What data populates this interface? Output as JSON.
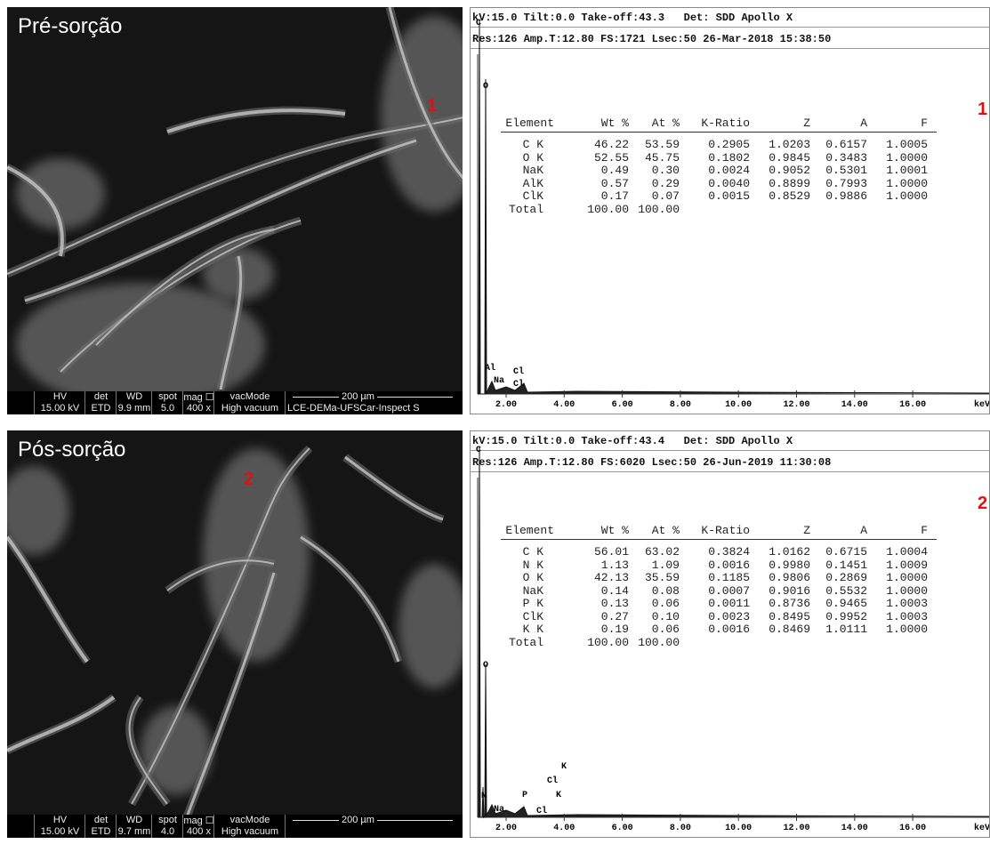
{
  "panels": [
    {
      "sem": {
        "label": "Pré-sorção",
        "marker": "1",
        "info": {
          "headers": [
            "HV",
            "det",
            "WD",
            "spot",
            "mag ☐",
            "vacMode"
          ],
          "values": [
            "15.00 kV",
            "ETD",
            "9.9 mm",
            "5.0",
            "400 x",
            "High vacuum"
          ],
          "scale": "200 µm",
          "credit": "LCE-DEMa-UFSCar-Inspect S"
        }
      },
      "eds": {
        "header": [
          "kV:15.0 Tilt:0.0 Take-off:43.3   Det: SDD Apollo X",
          "Res:126 Amp.T:12.80 FS:1721 Lsec:50 26-Mar-2018 15:38:50"
        ],
        "marker": "1",
        "table": {
          "columns": [
            "Element",
            "Wt %",
            "At %",
            "K-Ratio",
            "Z",
            "A",
            "F"
          ],
          "rows": [
            [
              "C K",
              "46.22",
              "53.59",
              "0.2905",
              "1.0203",
              "0.6157",
              "1.0005"
            ],
            [
              "O K",
              "52.55",
              "45.75",
              "0.1802",
              "0.9845",
              "0.3483",
              "1.0000"
            ],
            [
              "NaK",
              "0.49",
              "0.30",
              "0.0024",
              "0.9052",
              "0.5301",
              "1.0001"
            ],
            [
              "AlK",
              "0.57",
              "0.29",
              "0.0040",
              "0.8899",
              "0.7993",
              "1.0000"
            ],
            [
              "ClK",
              "0.17",
              "0.07",
              "0.0015",
              "0.8529",
              "0.9886",
              "1.0000"
            ],
            [
              "Total",
              "100.00",
              "100.00"
            ]
          ]
        },
        "peaks": [
          "C",
          "O",
          "Al",
          "Cl",
          "Na",
          "Cl"
        ],
        "xticks": [
          "2.00",
          "4.00",
          "6.00",
          "8.00",
          "10.00",
          "12.00",
          "14.00",
          "16.00"
        ],
        "x_unit": "keV"
      }
    },
    {
      "sem": {
        "label": "Pós-sorção",
        "marker": "2",
        "info": {
          "headers": [
            "HV",
            "det",
            "WD",
            "spot",
            "mag ☐",
            "vacMode"
          ],
          "values": [
            "15.00 kV",
            "ETD",
            "9.7 mm",
            "4.0",
            "400 x",
            "High vacuum"
          ],
          "scale": "200 µm"
        }
      },
      "eds": {
        "header": [
          "kV:15.0 Tilt:0.0 Take-off:43.4   Det: SDD Apollo X",
          "Res:126 Amp.T:12.80 FS:6020 Lsec:50 26-Jun-2019 11:30:08"
        ],
        "marker": "2",
        "table": {
          "columns": [
            "Element",
            "Wt %",
            "At %",
            "K-Ratio",
            "Z",
            "A",
            "F"
          ],
          "rows": [
            [
              "C K",
              "56.01",
              "63.02",
              "0.3824",
              "1.0162",
              "0.6715",
              "1.0004"
            ],
            [
              "N K",
              "1.13",
              "1.09",
              "0.0016",
              "0.9980",
              "0.1451",
              "1.0009"
            ],
            [
              "O K",
              "42.13",
              "35.59",
              "0.1185",
              "0.9806",
              "0.2869",
              "1.0000"
            ],
            [
              "NaK",
              "0.14",
              "0.08",
              "0.0007",
              "0.9016",
              "0.5532",
              "1.0000"
            ],
            [
              "P K",
              "0.13",
              "0.06",
              "0.0011",
              "0.8736",
              "0.9465",
              "1.0003"
            ],
            [
              "ClK",
              "0.27",
              "0.10",
              "0.0023",
              "0.8495",
              "0.9952",
              "1.0003"
            ],
            [
              "K K",
              "0.19",
              "0.06",
              "0.0016",
              "0.8469",
              "1.0111",
              "1.0000"
            ],
            [
              "Total",
              "100.00",
              "100.00"
            ]
          ]
        },
        "peaks": [
          "C",
          "O",
          "N",
          "K",
          "Cl",
          "P",
          "K",
          "Na",
          "Cl"
        ],
        "xticks": [
          "2.00",
          "4.00",
          "6.00",
          "8.00",
          "10.00",
          "12.00",
          "14.00",
          "16.00"
        ],
        "x_unit": "keV"
      }
    }
  ]
}
